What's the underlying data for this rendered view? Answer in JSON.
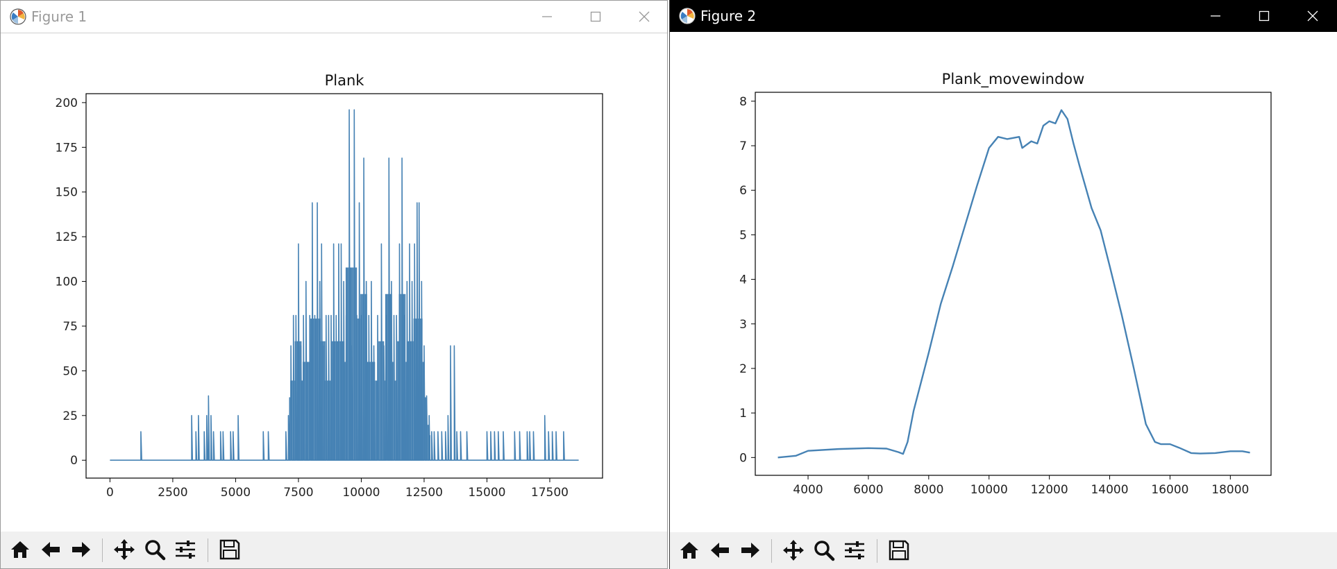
{
  "windows": [
    {
      "title": "Figure 1"
    },
    {
      "title": "Figure 2"
    }
  ],
  "toolbar": {
    "buttons": [
      "home-icon",
      "back-arrow-icon",
      "forward-arrow-icon",
      "pan-icon",
      "zoom-icon",
      "configure-subplots-icon",
      "save-icon"
    ]
  },
  "colors": {
    "line": "#4682b4",
    "titlebar_active": "#000000",
    "titlebar_inactive": "#ffffff",
    "toolbar_bg": "#f0f0f0"
  },
  "chart_data": [
    {
      "type": "line",
      "title": "Plank",
      "xlabel": "",
      "ylabel": "",
      "xlim": [
        -950,
        19600
      ],
      "ylim": [
        -10,
        205
      ],
      "xticks": [
        0,
        2500,
        5000,
        7500,
        10000,
        12500,
        15000,
        17500
      ],
      "yticks": [
        0,
        25,
        50,
        75,
        100,
        125,
        150,
        175,
        200
      ],
      "grid": false,
      "series": [
        {
          "color": "#4682b4",
          "baseline": 0,
          "x_start": 0,
          "x_end": 18650,
          "spikes": [
            [
              1230,
              16
            ],
            [
              3250,
              25
            ],
            [
              3420,
              16
            ],
            [
              3520,
              25
            ],
            [
              3750,
              16
            ],
            [
              3850,
              25
            ],
            [
              3920,
              36
            ],
            [
              4020,
              25
            ],
            [
              4120,
              16
            ],
            [
              4400,
              16
            ],
            [
              4500,
              16
            ],
            [
              4800,
              16
            ],
            [
              4900,
              16
            ],
            [
              5100,
              25
            ],
            [
              6100,
              16
            ],
            [
              6300,
              16
            ],
            [
              7000,
              16
            ],
            [
              7100,
              25
            ],
            [
              7200,
              64
            ],
            [
              7300,
              81
            ],
            [
              7400,
              81
            ],
            [
              7500,
              121
            ],
            [
              7600,
              64
            ],
            [
              7700,
              81
            ],
            [
              7800,
              100
            ],
            [
              7950,
              81
            ],
            [
              8050,
              144
            ],
            [
              8150,
              81
            ],
            [
              8250,
              144
            ],
            [
              8350,
              100
            ],
            [
              8420,
              121
            ],
            [
              8500,
              64
            ],
            [
              8600,
              81
            ],
            [
              8700,
              81
            ],
            [
              8800,
              81
            ],
            [
              8900,
              121
            ],
            [
              9000,
              81
            ],
            [
              9100,
              121
            ],
            [
              9200,
              121
            ],
            [
              9300,
              100
            ],
            [
              9400,
              81
            ],
            [
              9520,
              196
            ],
            [
              9620,
              64
            ],
            [
              9720,
              196
            ],
            [
              9820,
              81
            ],
            [
              9920,
              144
            ],
            [
              10000,
              81
            ],
            [
              10100,
              169
            ],
            [
              10200,
              100
            ],
            [
              10300,
              81
            ],
            [
              10400,
              100
            ],
            [
              10500,
              64
            ],
            [
              10650,
              81
            ],
            [
              10800,
              121
            ],
            [
              10900,
              64
            ],
            [
              11000,
              81
            ],
            [
              11100,
              169
            ],
            [
              11200,
              100
            ],
            [
              11300,
              81
            ],
            [
              11400,
              81
            ],
            [
              11520,
              121
            ],
            [
              11620,
              169
            ],
            [
              11720,
              81
            ],
            [
              11820,
              100
            ],
            [
              11920,
              121
            ],
            [
              12020,
              100
            ],
            [
              12120,
              121
            ],
            [
              12220,
              144
            ],
            [
              12300,
              144
            ],
            [
              12400,
              100
            ],
            [
              12500,
              64
            ],
            [
              12600,
              36
            ],
            [
              12700,
              25
            ],
            [
              12800,
              16
            ],
            [
              12900,
              16
            ],
            [
              13050,
              16
            ],
            [
              13200,
              16
            ],
            [
              13350,
              16
            ],
            [
              13450,
              25
            ],
            [
              13550,
              64
            ],
            [
              13700,
              64
            ],
            [
              13800,
              16
            ],
            [
              13950,
              16
            ],
            [
              14200,
              16
            ],
            [
              15000,
              16
            ],
            [
              15150,
              16
            ],
            [
              15300,
              16
            ],
            [
              15450,
              16
            ],
            [
              15650,
              16
            ],
            [
              16100,
              16
            ],
            [
              16300,
              16
            ],
            [
              16600,
              16
            ],
            [
              16700,
              16
            ],
            [
              16850,
              16
            ],
            [
              17300,
              25
            ],
            [
              17450,
              16
            ],
            [
              17600,
              16
            ],
            [
              17750,
              16
            ],
            [
              18050,
              16
            ]
          ]
        }
      ]
    },
    {
      "type": "line",
      "title": "Plank_movewindow",
      "xlabel": "",
      "ylabel": "",
      "xlim": [
        2250,
        19350
      ],
      "ylim": [
        -0.4,
        8.2
      ],
      "xticks": [
        4000,
        6000,
        8000,
        10000,
        12000,
        14000,
        16000,
        18000
      ],
      "yticks": [
        0,
        1,
        2,
        3,
        4,
        5,
        6,
        7,
        8
      ],
      "grid": false,
      "series": [
        {
          "color": "#4682b4",
          "x": [
            3000,
            3600,
            4000,
            5000,
            6000,
            6600,
            7000,
            7150,
            7300,
            7500,
            8000,
            8400,
            8800,
            9200,
            9600,
            10000,
            10300,
            10600,
            11000,
            11100,
            11400,
            11600,
            11800,
            12000,
            12200,
            12400,
            12600,
            12800,
            13000,
            13400,
            13700,
            14000,
            14400,
            14800,
            15200,
            15500,
            15700,
            16000,
            16300,
            16700,
            17000,
            17500,
            18000,
            18400,
            18650
          ],
          "y": [
            0.0,
            0.04,
            0.15,
            0.19,
            0.21,
            0.2,
            0.12,
            0.08,
            0.35,
            1.05,
            2.35,
            3.45,
            4.3,
            5.2,
            6.1,
            6.95,
            7.2,
            7.15,
            7.2,
            6.95,
            7.1,
            7.05,
            7.45,
            7.55,
            7.5,
            7.8,
            7.6,
            7.05,
            6.55,
            5.6,
            5.1,
            4.3,
            3.2,
            2.0,
            0.75,
            0.35,
            0.3,
            0.3,
            0.22,
            0.1,
            0.09,
            0.1,
            0.14,
            0.14,
            0.11
          ]
        }
      ]
    }
  ]
}
